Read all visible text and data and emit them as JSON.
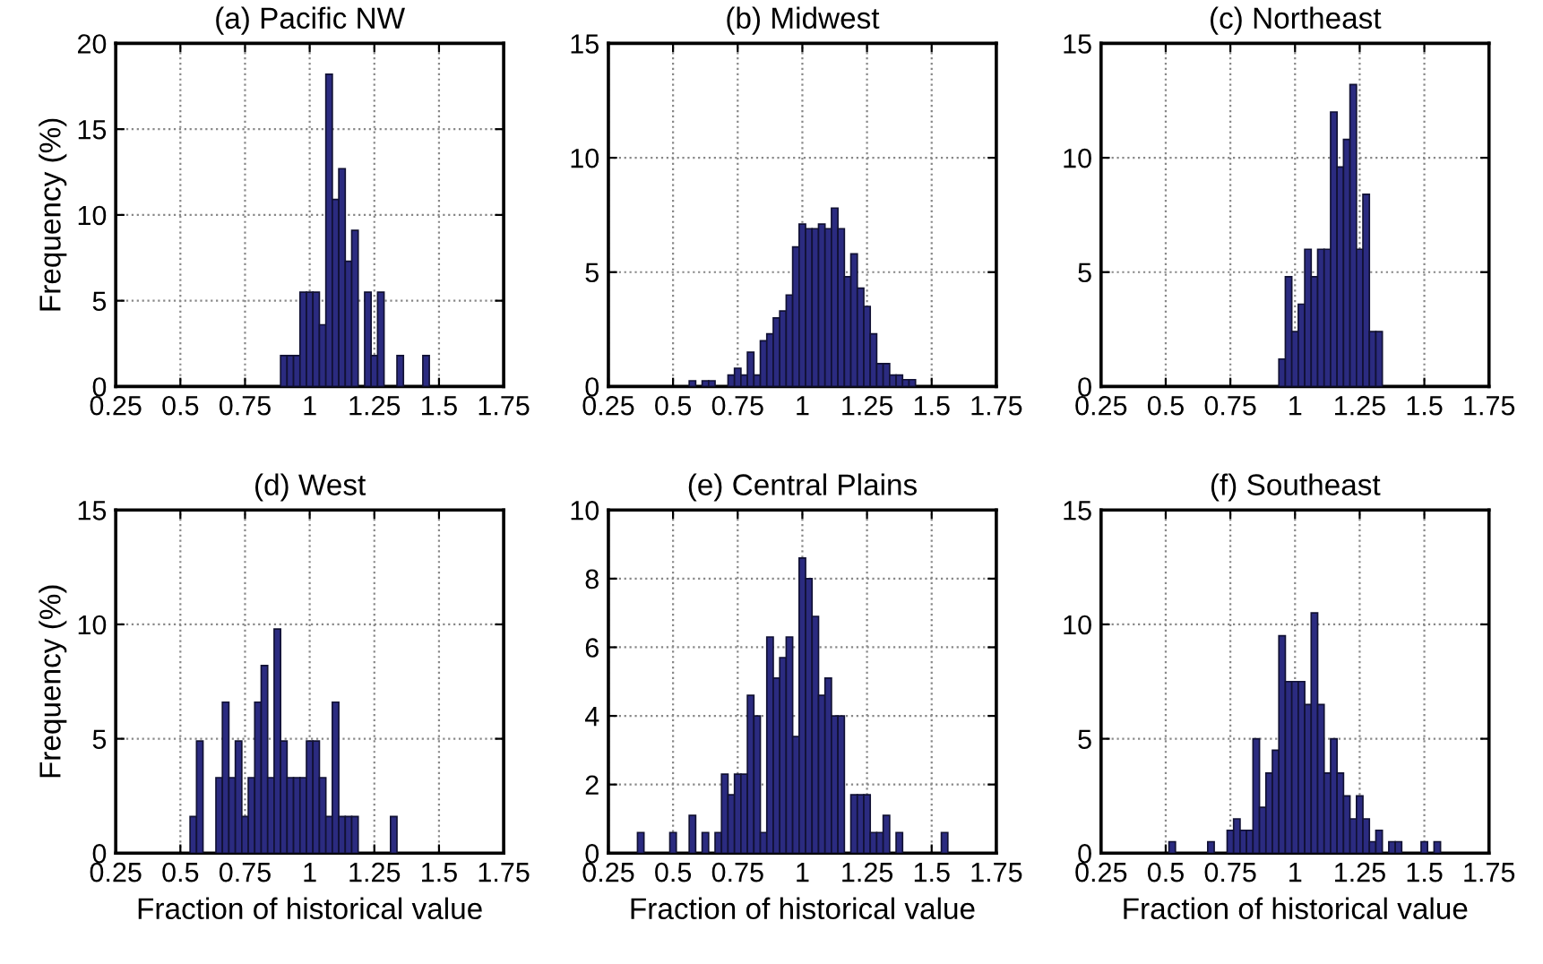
{
  "chart_data": [
    {
      "type": "histogram",
      "title": "(a) Pacific NW",
      "ylabel": "Frequency (%)",
      "color": "#2b2b80",
      "grid": true,
      "xlim": [
        0.25,
        1.75
      ],
      "xticks": [
        0.25,
        0.5,
        0.75,
        1,
        1.25,
        1.5,
        1.75
      ],
      "ylim": [
        0,
        20
      ],
      "yticks": [
        0,
        5,
        10,
        15,
        20
      ],
      "bins": [
        0.8875,
        0.9125,
        0.9375,
        0.9625,
        0.9875,
        1.0125,
        1.0375,
        1.0625,
        1.0875,
        1.1125,
        1.1375,
        1.1625,
        1.1875,
        1.2125,
        1.2375,
        1.2625,
        1.2875,
        1.3125,
        1.3375,
        1.3625,
        1.3875,
        1.4125,
        1.4375,
        1.4625
      ],
      "values": [
        1.8,
        1.8,
        1.8,
        5.5,
        5.5,
        5.5,
        3.6,
        18.2,
        10.9,
        12.7,
        7.3,
        9.1,
        0,
        5.5,
        1.8,
        5.5,
        0,
        0,
        1.8,
        0,
        0,
        0,
        1.8
      ]
    },
    {
      "type": "histogram",
      "title": "(b) Midwest",
      "color": "#2b2b80",
      "grid": true,
      "xlim": [
        0.25,
        1.75
      ],
      "xticks": [
        0.25,
        0.5,
        0.75,
        1,
        1.25,
        1.5,
        1.75
      ],
      "ylim": [
        0,
        15
      ],
      "yticks": [
        0,
        5,
        10,
        15
      ],
      "bins": [
        0.5625,
        0.5875,
        0.6125,
        0.6375,
        0.6625,
        0.6875,
        0.7125,
        0.7375,
        0.7625,
        0.7875,
        0.8125,
        0.8375,
        0.8625,
        0.8875,
        0.9125,
        0.9375,
        0.9625,
        0.9875,
        1.0125,
        1.0375,
        1.0625,
        1.0875,
        1.1125,
        1.1375,
        1.1625,
        1.1875,
        1.2125,
        1.2375,
        1.2625,
        1.2875,
        1.3125,
        1.3375,
        1.3625,
        1.3875,
        1.4125,
        1.4375
      ],
      "values": [
        0.25,
        0,
        0.25,
        0.25,
        0,
        0,
        0.5,
        0.8,
        0.5,
        1.5,
        0.5,
        2.0,
        2.3,
        3.0,
        3.3,
        4.0,
        6.1,
        7.1,
        6.9,
        6.9,
        7.1,
        6.9,
        7.8,
        6.9,
        4.8,
        5.8,
        4.3,
        3.5,
        2.3,
        1.0,
        1.0,
        0.5,
        0.5,
        0.3,
        0.3
      ]
    },
    {
      "type": "histogram",
      "title": "(c) Northeast",
      "color": "#2b2b80",
      "grid": true,
      "xlim": [
        0.25,
        1.75
      ],
      "xticks": [
        0.25,
        0.5,
        0.75,
        1,
        1.25,
        1.5,
        1.75
      ],
      "ylim": [
        0,
        15
      ],
      "yticks": [
        0,
        5,
        10,
        15
      ],
      "bins": [
        0.9375,
        0.9625,
        0.9875,
        1.0125,
        1.0375,
        1.0625,
        1.0875,
        1.1125,
        1.1375,
        1.1625,
        1.1875,
        1.2125,
        1.2375,
        1.2625,
        1.2875,
        1.3125,
        1.3375
      ],
      "values": [
        1.2,
        4.8,
        2.4,
        3.6,
        6.0,
        4.8,
        6.0,
        6.0,
        12.0,
        9.6,
        10.8,
        13.2,
        6.0,
        8.4,
        2.4,
        2.4
      ]
    },
    {
      "type": "histogram",
      "title": "(d) West",
      "xlabel": "Fraction of historical value",
      "ylabel": "Frequency (%)",
      "color": "#2b2b80",
      "grid": true,
      "xlim": [
        0.25,
        1.75
      ],
      "xticks": [
        0.25,
        0.5,
        0.75,
        1,
        1.25,
        1.5,
        1.75
      ],
      "ylim": [
        0,
        15
      ],
      "yticks": [
        0,
        5,
        10,
        15
      ],
      "bins": [
        0.5375,
        0.5625,
        0.5875,
        0.6125,
        0.6375,
        0.6625,
        0.6875,
        0.7125,
        0.7375,
        0.7625,
        0.7875,
        0.8125,
        0.8375,
        0.8625,
        0.8875,
        0.9125,
        0.9375,
        0.9625,
        0.9875,
        1.0125,
        1.0375,
        1.0625,
        1.0875,
        1.1125,
        1.1375,
        1.1625,
        1.1875,
        1.2125,
        1.2375,
        1.2625,
        1.2875,
        1.3125,
        1.3375
      ],
      "values": [
        1.6,
        4.9,
        0,
        0,
        3.3,
        6.6,
        3.3,
        4.9,
        1.6,
        3.3,
        6.6,
        8.2,
        3.3,
        9.8,
        4.9,
        3.3,
        3.3,
        3.3,
        4.9,
        4.9,
        3.3,
        1.6,
        6.6,
        1.6,
        1.6,
        1.6,
        0,
        0,
        0,
        0,
        0,
        1.6
      ]
    },
    {
      "type": "histogram",
      "title": "(e) Central Plains",
      "xlabel": "Fraction of historical value",
      "color": "#2b2b80",
      "grid": true,
      "xlim": [
        0.25,
        1.75
      ],
      "xticks": [
        0.25,
        0.5,
        0.75,
        1,
        1.25,
        1.5,
        1.75
      ],
      "ylim": [
        0,
        10
      ],
      "yticks": [
        0,
        2,
        4,
        6,
        8,
        10
      ],
      "bins": [
        0.3625,
        0.3875,
        0.4125,
        0.4375,
        0.4625,
        0.4875,
        0.5125,
        0.5375,
        0.5625,
        0.5875,
        0.6125,
        0.6375,
        0.6625,
        0.6875,
        0.7125,
        0.7375,
        0.7625,
        0.7875,
        0.8125,
        0.8375,
        0.8625,
        0.8875,
        0.9125,
        0.9375,
        0.9625,
        0.9875,
        1.0125,
        1.0375,
        1.0625,
        1.0875,
        1.1125,
        1.1375,
        1.1625,
        1.1875,
        1.2125,
        1.2375,
        1.2625,
        1.2875,
        1.3125,
        1.3375,
        1.3625,
        1.3875,
        1.4125,
        1.4375,
        1.4625,
        1.4875,
        1.5125,
        1.5375,
        1.5625
      ],
      "values": [
        0.6,
        0,
        0,
        0,
        0,
        0.6,
        0,
        0,
        1.1,
        0,
        0.6,
        0,
        0.6,
        2.3,
        1.7,
        2.3,
        2.3,
        4.6,
        4.0,
        0.6,
        6.3,
        5.1,
        5.7,
        6.3,
        3.4,
        8.6,
        8.0,
        6.9,
        4.6,
        5.1,
        4.0,
        4.0,
        0,
        1.7,
        1.7,
        1.7,
        0.6,
        0.6,
        1.1,
        0,
        0.6,
        0,
        0,
        0,
        0,
        0,
        0,
        0.6
      ]
    },
    {
      "type": "histogram",
      "title": "(f) Southeast",
      "xlabel": "Fraction of historical value",
      "color": "#2b2b80",
      "grid": true,
      "xlim": [
        0.25,
        1.75
      ],
      "xticks": [
        0.25,
        0.5,
        0.75,
        1,
        1.25,
        1.5,
        1.75
      ],
      "ylim": [
        0,
        15
      ],
      "yticks": [
        0,
        5,
        10,
        15
      ],
      "bins": [
        0.5125,
        0.5375,
        0.5625,
        0.5875,
        0.6125,
        0.6375,
        0.6625,
        0.6875,
        0.7125,
        0.7375,
        0.7625,
        0.7875,
        0.8125,
        0.8375,
        0.8625,
        0.8875,
        0.9125,
        0.9375,
        0.9625,
        0.9875,
        1.0125,
        1.0375,
        1.0625,
        1.0875,
        1.1125,
        1.1375,
        1.1625,
        1.1875,
        1.2125,
        1.2375,
        1.2625,
        1.2875,
        1.3125,
        1.3375,
        1.3625,
        1.3875,
        1.4125,
        1.4375,
        1.4625,
        1.4875,
        1.5125,
        1.5375,
        1.5625
      ],
      "values": [
        0.5,
        0,
        0,
        0,
        0,
        0,
        0.5,
        0,
        0,
        1.0,
        1.5,
        1.0,
        1.0,
        5.0,
        2.0,
        3.5,
        4.5,
        9.5,
        7.5,
        7.5,
        7.5,
        6.5,
        10.5,
        6.5,
        3.5,
        5.0,
        3.5,
        2.5,
        1.5,
        2.5,
        1.5,
        0.5,
        1.0,
        0,
        0.5,
        0.5,
        0,
        0,
        0,
        0.5,
        0,
        0.5
      ]
    }
  ]
}
